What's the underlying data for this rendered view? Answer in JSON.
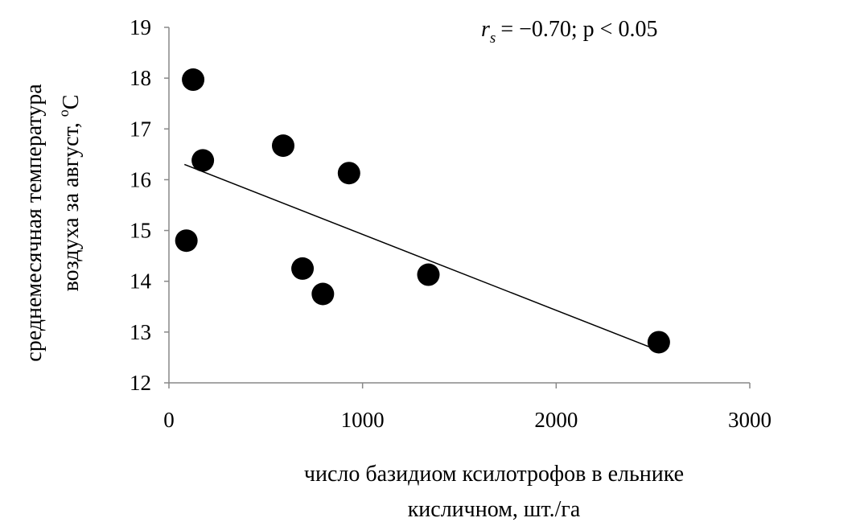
{
  "chart_data": {
    "type": "scatter",
    "annotation": {
      "r_symbol": "r",
      "r_subscript": "s",
      "text": "= −0.70; p < 0.05"
    },
    "xlabel_line1": "число базидиом ксилотрофов  в ельнике",
    "xlabel_line2": "кисличном, шт./га",
    "ylabel_line1": "среднемесячная температура",
    "ylabel_line2": "воздуха  за август, ",
    "ylabel_unit_sup": "o",
    "ylabel_unit": "C",
    "xlim": [
      0,
      3000
    ],
    "ylim": [
      12,
      19
    ],
    "xticks": [
      0,
      1000,
      2000,
      3000
    ],
    "yticks": [
      12,
      13,
      14,
      15,
      16,
      17,
      18,
      19
    ],
    "x_tick_labels": [
      "0",
      "1000",
      "2000",
      "3000"
    ],
    "y_tick_labels": [
      "12",
      "13",
      "14",
      "15",
      "16",
      "17",
      "18",
      "19"
    ],
    "points": [
      {
        "x": 90,
        "y": 14.8
      },
      {
        "x": 125,
        "y": 17.97
      },
      {
        "x": 175,
        "y": 16.38
      },
      {
        "x": 590,
        "y": 16.67
      },
      {
        "x": 690,
        "y": 14.25
      },
      {
        "x": 795,
        "y": 13.75
      },
      {
        "x": 930,
        "y": 16.13
      },
      {
        "x": 1340,
        "y": 14.13
      },
      {
        "x": 2530,
        "y": 12.8
      }
    ],
    "trendline": {
      "x": [
        80,
        2520
      ],
      "y": [
        16.3,
        12.65
      ]
    },
    "grid": false,
    "marker_color": "#000000",
    "line_color": "#000000"
  }
}
